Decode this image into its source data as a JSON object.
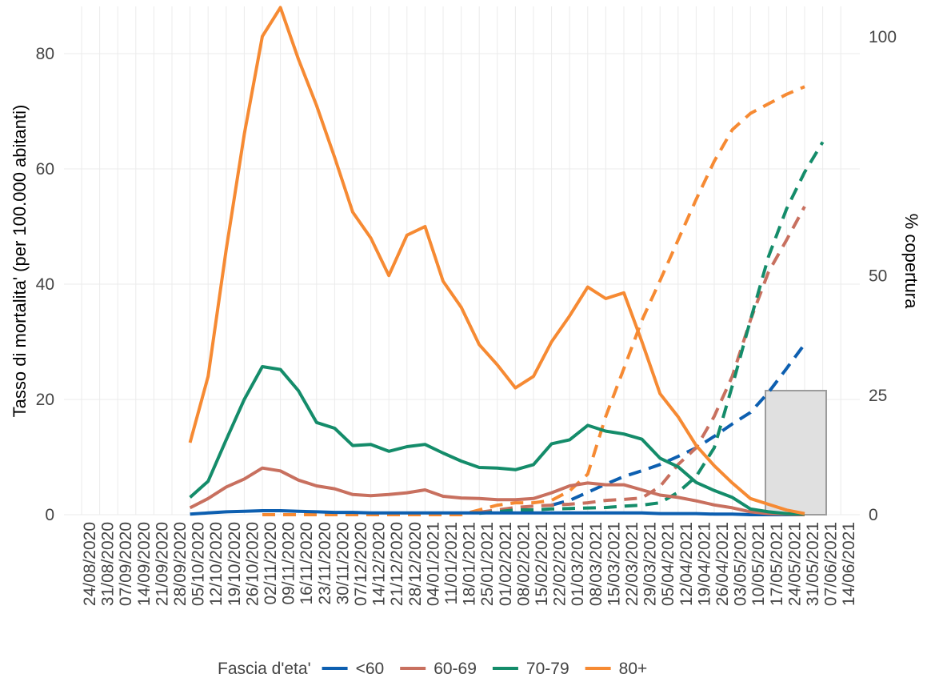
{
  "chart_data": {
    "type": "line",
    "ylabel": "Tasso di mortalita' (per 100.000 abitanti)",
    "y2label": "% copertura",
    "legend_title": "Fascia d'eta'",
    "legend_position": "bottom",
    "grid": true,
    "categories": [
      "24/08/2020",
      "31/08/2020",
      "07/09/2020",
      "14/09/2020",
      "21/09/2020",
      "28/09/2020",
      "05/10/2020",
      "12/10/2020",
      "19/10/2020",
      "26/10/2020",
      "02/11/2020",
      "09/11/2020",
      "16/11/2020",
      "23/11/2020",
      "30/11/2020",
      "07/12/2020",
      "14/12/2020",
      "21/12/2020",
      "28/12/2020",
      "04/01/2021",
      "11/01/2021",
      "18/01/2021",
      "25/01/2021",
      "01/02/2021",
      "08/02/2021",
      "15/02/2021",
      "22/02/2021",
      "01/03/2021",
      "08/03/2021",
      "15/03/2021",
      "22/03/2021",
      "29/03/2021",
      "05/04/2021",
      "12/04/2021",
      "19/04/2021",
      "26/04/2021",
      "03/05/2021",
      "10/05/2021",
      "17/05/2021",
      "24/05/2021",
      "31/05/2021",
      "07/06/2021",
      "14/06/2021"
    ],
    "ylim": [
      0,
      88.2
    ],
    "yticks": [
      0,
      20,
      40,
      60,
      80
    ],
    "y2lim": [
      0,
      106.4
    ],
    "y2ticks": [
      0,
      25,
      50,
      100
    ],
    "series": [
      {
        "name": "<60",
        "color": "#0d5fb0",
        "values": [
          null,
          null,
          null,
          null,
          null,
          null,
          0.1,
          0.3,
          0.5,
          0.6,
          0.7,
          0.7,
          0.6,
          0.5,
          0.4,
          0.4,
          0.3,
          0.3,
          0.3,
          0.3,
          0.3,
          0.3,
          0.3,
          0.3,
          0.3,
          0.3,
          0.3,
          0.3,
          0.3,
          0.3,
          0.3,
          0.3,
          0.2,
          0.2,
          0.2,
          0.1,
          0.1,
          0,
          0,
          0,
          0,
          null,
          null
        ],
        "coverage": [
          null,
          null,
          null,
          null,
          null,
          null,
          null,
          null,
          null,
          null,
          null,
          null,
          null,
          null,
          null,
          null,
          null,
          null,
          null,
          null,
          null,
          null,
          null,
          null,
          null,
          null,
          2,
          3,
          4.7,
          6.4,
          8,
          9.2,
          10.5,
          12.2,
          14,
          16.4,
          19,
          21.4,
          25.6,
          30.6,
          35.7,
          null,
          null
        ]
      },
      {
        "name": "60-69",
        "color": "#c8705f",
        "values": [
          null,
          null,
          null,
          null,
          null,
          null,
          1.2,
          2.8,
          4.8,
          6.2,
          8.1,
          7.6,
          6,
          5,
          4.5,
          3.5,
          3.3,
          3.5,
          3.8,
          4.3,
          3.2,
          2.9,
          2.8,
          2.6,
          2.6,
          2.8,
          3.8,
          5,
          5.5,
          5.2,
          5.2,
          4.3,
          3.4,
          3,
          2.4,
          1.7,
          1.2,
          0.5,
          0.2,
          0.1,
          0,
          null,
          null
        ],
        "coverage": [
          null,
          null,
          null,
          null,
          null,
          null,
          null,
          null,
          null,
          null,
          null,
          null,
          null,
          null,
          null,
          null,
          null,
          null,
          null,
          null,
          null,
          null,
          0.5,
          1,
          1.5,
          1.8,
          2,
          2.2,
          2.5,
          3,
          3.2,
          3.5,
          5.9,
          10.5,
          14,
          20.6,
          29,
          40.7,
          50.8,
          57.5,
          64.5,
          null,
          null
        ]
      },
      {
        "name": "70-79",
        "color": "#148c6a",
        "values": [
          null,
          null,
          null,
          null,
          null,
          null,
          3,
          5.8,
          13,
          20,
          25.7,
          25.2,
          21.5,
          16,
          15,
          12,
          12.2,
          11,
          11.8,
          12.2,
          10.7,
          9.3,
          8.2,
          8.1,
          7.8,
          8.7,
          12.3,
          13,
          15.5,
          14.5,
          14,
          13.1,
          9.8,
          8.3,
          5.6,
          4.2,
          3,
          1,
          0.5,
          0.2,
          0.1,
          null,
          null
        ],
        "coverage": [
          null,
          null,
          null,
          null,
          null,
          null,
          null,
          null,
          null,
          null,
          null,
          null,
          null,
          null,
          null,
          null,
          null,
          null,
          null,
          null,
          null,
          null,
          0.3,
          0.6,
          1,
          1,
          1.2,
          1.3,
          1.4,
          1.5,
          1.8,
          2,
          2.5,
          4.7,
          8,
          14,
          27,
          40.7,
          54,
          64,
          71.7,
          78,
          null
        ]
      },
      {
        "name": "80+",
        "color": "#f68a33",
        "values": [
          null,
          null,
          null,
          null,
          null,
          null,
          12.5,
          24,
          46,
          66,
          83,
          88,
          79,
          71,
          62,
          52.5,
          48,
          41.5,
          48.5,
          50,
          40.5,
          36,
          29.5,
          26,
          22,
          24,
          30,
          34.5,
          39.5,
          37.5,
          38.5,
          30,
          21,
          17,
          12,
          8.5,
          5.5,
          2.8,
          1.8,
          0.8,
          0.2,
          null,
          null
        ],
        "coverage": [
          null,
          null,
          null,
          null,
          null,
          null,
          null,
          null,
          null,
          null,
          0,
          0,
          0,
          0,
          0,
          0,
          0,
          0,
          0,
          0,
          0,
          0,
          1,
          2,
          2.5,
          2.5,
          3,
          5,
          8.5,
          20.6,
          30.6,
          40.7,
          49,
          57.5,
          66,
          74,
          80.6,
          84,
          86,
          88,
          89.6,
          null,
          null
        ]
      }
    ]
  }
}
